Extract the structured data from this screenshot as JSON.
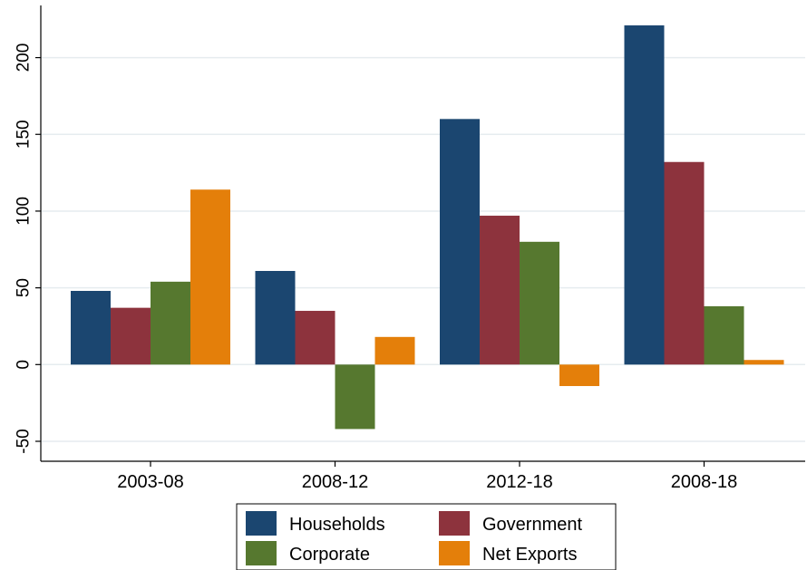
{
  "chart_data": {
    "type": "bar",
    "title": "",
    "xlabel": "",
    "ylabel": "",
    "categories": [
      "2003-08",
      "2008-12",
      "2012-18",
      "2008-18"
    ],
    "series": [
      {
        "name": "Households",
        "color": "#1b4670",
        "values": [
          48,
          61,
          160,
          221
        ]
      },
      {
        "name": "Government",
        "color": "#8d333d",
        "values": [
          37,
          35,
          97,
          132
        ]
      },
      {
        "name": "Corporate",
        "color": "#56782f",
        "values": [
          54,
          -42,
          80,
          38
        ]
      },
      {
        "name": "Net Exports",
        "color": "#e47f0a",
        "values": [
          114,
          18,
          -14,
          3
        ]
      }
    ],
    "ylim": [
      -63,
      234
    ],
    "yticks": [
      -50,
      0,
      50,
      100,
      150,
      200
    ],
    "ytick_labels": [
      "-50",
      "0",
      "50",
      "100",
      "150",
      "200"
    ],
    "grid": true,
    "legend_position": "bottom"
  }
}
